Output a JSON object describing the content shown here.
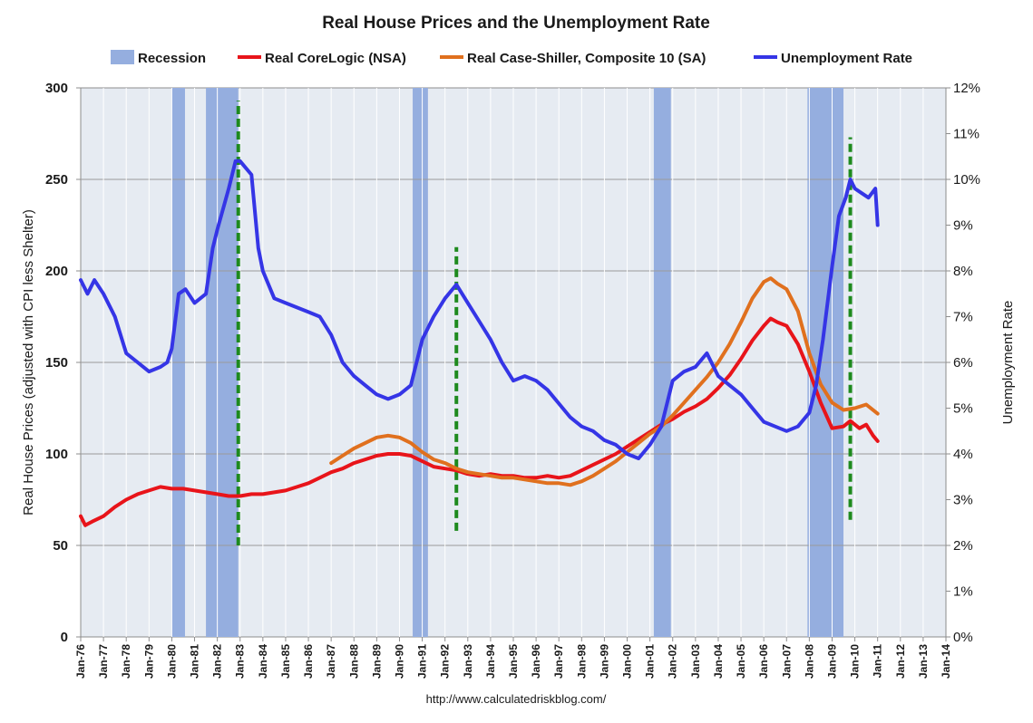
{
  "chart_data": {
    "type": "line",
    "title": "Real House Prices and the Unemployment Rate",
    "source": "http://www.calculatedriskblog.com/",
    "ylabel_left": "Real House Prices (adjusted with CPI less Shelter)",
    "ylabel_right": "Unemployment Rate",
    "ylim_left": [
      0,
      300
    ],
    "yticks_left": [
      "0",
      "50",
      "100",
      "150",
      "200",
      "250",
      "300"
    ],
    "ylim_right": [
      0,
      12
    ],
    "yticks_right": [
      "0%",
      "1%",
      "2%",
      "3%",
      "4%",
      "5%",
      "6%",
      "7%",
      "8%",
      "9%",
      "10%",
      "11%",
      "12%"
    ],
    "xlim": [
      1976.0,
      2014.0
    ],
    "xticks": [
      "Jan-76",
      "Jan-77",
      "Jan-78",
      "Jan-79",
      "Jan-80",
      "Jan-81",
      "Jan-82",
      "Jan-83",
      "Jan-84",
      "Jan-85",
      "Jan-86",
      "Jan-87",
      "Jan-88",
      "Jan-89",
      "Jan-90",
      "Jan-91",
      "Jan-92",
      "Jan-93",
      "Jan-94",
      "Jan-95",
      "Jan-96",
      "Jan-97",
      "Jan-98",
      "Jan-99",
      "Jan-00",
      "Jan-01",
      "Jan-02",
      "Jan-03",
      "Jan-04",
      "Jan-05",
      "Jan-06",
      "Jan-07",
      "Jan-08",
      "Jan-09",
      "Jan-10",
      "Jan-11",
      "Jan-12",
      "Jan-13",
      "Jan-14"
    ],
    "legend": [
      {
        "label": "Recession",
        "color": "#95aedf",
        "kind": "box"
      },
      {
        "label": "Real CoreLogic (NSA)",
        "color": "#e8141a",
        "kind": "line"
      },
      {
        "label": "Real Case-Shiller, Composite 10 (SA)",
        "color": "#e0701e",
        "kind": "line"
      },
      {
        "label": "Unemployment Rate",
        "color": "#3535e6",
        "kind": "line"
      }
    ],
    "recessions": [
      [
        1980.0,
        1980.58
      ],
      [
        1981.5,
        1982.92
      ],
      [
        1990.58,
        1991.25
      ],
      [
        2001.17,
        2001.92
      ],
      [
        2007.92,
        2009.5
      ]
    ],
    "markers": [
      {
        "x": 1982.92,
        "y0": 50,
        "y1": 293
      },
      {
        "x": 1992.5,
        "y0": 58,
        "y1": 213
      },
      {
        "x": 2009.8,
        "y0": 64,
        "y1": 273
      }
    ],
    "series": [
      {
        "name": "Real CoreLogic (NSA)",
        "color": "#e8141a",
        "axis": "left",
        "x": [
          1976.0,
          1976.2,
          1976.5,
          1977.0,
          1977.5,
          1978.0,
          1978.5,
          1979.0,
          1979.5,
          1980.0,
          1980.5,
          1981.0,
          1981.5,
          1982.0,
          1982.5,
          1983.0,
          1983.5,
          1984.0,
          1984.5,
          1985.0,
          1985.5,
          1986.0,
          1986.5,
          1987.0,
          1987.5,
          1988.0,
          1988.5,
          1989.0,
          1989.5,
          1990.0,
          1990.5,
          1991.0,
          1991.5,
          1992.0,
          1992.5,
          1993.0,
          1993.5,
          1994.0,
          1994.5,
          1995.0,
          1995.5,
          1996.0,
          1996.5,
          1997.0,
          1997.5,
          1998.0,
          1998.5,
          1999.0,
          1999.5,
          2000.0,
          2000.5,
          2001.0,
          2001.5,
          2002.0,
          2002.5,
          2003.0,
          2003.5,
          2004.0,
          2004.5,
          2005.0,
          2005.5,
          2006.0,
          2006.3,
          2006.6,
          2007.0,
          2007.5,
          2008.0,
          2008.5,
          2009.0,
          2009.5,
          2009.8,
          2010.2,
          2010.5,
          2010.8,
          2011.0
        ],
        "values": [
          66,
          61,
          63,
          66,
          71,
          75,
          78,
          80,
          82,
          81,
          81,
          80,
          79,
          78,
          77,
          77,
          78,
          78,
          79,
          80,
          82,
          84,
          87,
          90,
          92,
          95,
          97,
          99,
          100,
          100,
          99,
          96,
          93,
          92,
          91,
          89,
          88,
          89,
          88,
          88,
          87,
          87,
          88,
          87,
          88,
          91,
          94,
          97,
          100,
          104,
          108,
          112,
          116,
          119,
          123,
          126,
          130,
          136,
          143,
          152,
          162,
          170,
          174,
          172,
          170,
          160,
          145,
          128,
          114,
          115,
          118,
          114,
          116,
          110,
          107
        ]
      },
      {
        "name": "Real Case-Shiller, Composite 10 (SA)",
        "color": "#e0701e",
        "axis": "left",
        "x": [
          1987.0,
          1987.5,
          1988.0,
          1988.5,
          1989.0,
          1989.5,
          1990.0,
          1990.5,
          1991.0,
          1991.5,
          1992.0,
          1992.5,
          1993.0,
          1993.5,
          1994.0,
          1994.5,
          1995.0,
          1995.5,
          1996.0,
          1996.5,
          1997.0,
          1997.5,
          1998.0,
          1998.5,
          1999.0,
          1999.5,
          2000.0,
          2000.5,
          2001.0,
          2001.5,
          2002.0,
          2002.5,
          2003.0,
          2003.5,
          2004.0,
          2004.5,
          2005.0,
          2005.5,
          2006.0,
          2006.3,
          2006.6,
          2007.0,
          2007.5,
          2008.0,
          2008.5,
          2009.0,
          2009.5,
          2010.0,
          2010.5,
          2011.0
        ],
        "values": [
          95,
          99,
          103,
          106,
          109,
          110,
          109,
          106,
          101,
          97,
          95,
          92,
          90,
          89,
          88,
          87,
          87,
          86,
          85,
          84,
          84,
          83,
          85,
          88,
          92,
          96,
          101,
          106,
          111,
          115,
          121,
          128,
          135,
          142,
          150,
          160,
          172,
          185,
          194,
          196,
          193,
          190,
          178,
          155,
          138,
          128,
          124,
          125,
          127,
          122
        ]
      },
      {
        "name": "Unemployment Rate",
        "color": "#3535e6",
        "axis": "right",
        "x": [
          1976.0,
          1976.3,
          1976.6,
          1977.0,
          1977.5,
          1978.0,
          1978.5,
          1979.0,
          1979.5,
          1979.8,
          1980.0,
          1980.3,
          1980.6,
          1981.0,
          1981.5,
          1981.8,
          1982.0,
          1982.5,
          1982.8,
          1983.0,
          1983.5,
          1983.8,
          1984.0,
          1984.5,
          1985.0,
          1985.5,
          1986.0,
          1986.5,
          1987.0,
          1987.5,
          1988.0,
          1988.5,
          1989.0,
          1989.5,
          1990.0,
          1990.5,
          1991.0,
          1991.5,
          1992.0,
          1992.5,
          1993.0,
          1993.5,
          1994.0,
          1994.5,
          1995.0,
          1995.5,
          1996.0,
          1996.5,
          1997.0,
          1997.5,
          1998.0,
          1998.5,
          1999.0,
          1999.5,
          2000.0,
          2000.5,
          2001.0,
          2001.5,
          2002.0,
          2002.5,
          2003.0,
          2003.5,
          2004.0,
          2004.5,
          2005.0,
          2005.5,
          2006.0,
          2006.5,
          2007.0,
          2007.5,
          2008.0,
          2008.3,
          2008.6,
          2009.0,
          2009.3,
          2009.6,
          2009.8,
          2010.0,
          2010.3,
          2010.6,
          2010.9,
          2011.0
        ],
        "values": [
          7.8,
          7.5,
          7.8,
          7.5,
          7.0,
          6.2,
          6.0,
          5.8,
          5.9,
          6.0,
          6.3,
          7.5,
          7.6,
          7.3,
          7.5,
          8.5,
          8.9,
          9.8,
          10.4,
          10.4,
          10.1,
          8.5,
          8.0,
          7.4,
          7.3,
          7.2,
          7.1,
          7.0,
          6.6,
          6.0,
          5.7,
          5.5,
          5.3,
          5.2,
          5.3,
          5.5,
          6.5,
          7.0,
          7.4,
          7.7,
          7.3,
          6.9,
          6.5,
          6.0,
          5.6,
          5.7,
          5.6,
          5.4,
          5.1,
          4.8,
          4.6,
          4.5,
          4.3,
          4.2,
          4.0,
          3.9,
          4.2,
          4.6,
          5.6,
          5.8,
          5.9,
          6.2,
          5.7,
          5.5,
          5.3,
          5.0,
          4.7,
          4.6,
          4.5,
          4.6,
          4.9,
          5.5,
          6.5,
          8.1,
          9.2,
          9.6,
          10.0,
          9.8,
          9.7,
          9.6,
          9.8,
          9.0
        ]
      }
    ]
  }
}
